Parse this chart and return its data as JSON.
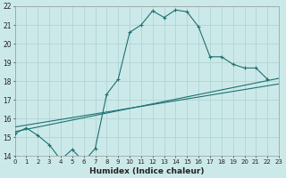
{
  "xlabel": "Humidex (Indice chaleur)",
  "x_min": 0,
  "x_max": 23,
  "y_min": 14,
  "y_max": 22,
  "background_color": "#cce9e9",
  "grid_color": "#b0d4d4",
  "line_color": "#1e7070",
  "main_line_x": [
    0,
    1,
    2,
    3,
    4,
    5,
    6,
    7,
    8,
    9,
    10,
    11,
    12,
    13,
    14,
    15,
    16,
    17,
    18,
    19,
    20,
    21,
    22
  ],
  "main_line_y": [
    15.2,
    15.5,
    15.1,
    14.6,
    13.8,
    14.35,
    13.7,
    14.4,
    17.3,
    18.1,
    20.6,
    21.0,
    21.75,
    21.4,
    21.8,
    21.7,
    20.9,
    19.3,
    19.3,
    18.9,
    18.7,
    18.7,
    18.1
  ],
  "line2_x": [
    0,
    23
  ],
  "line2_y": [
    15.3,
    18.15
  ],
  "line3_x": [
    0,
    23
  ],
  "line3_y": [
    15.55,
    17.85
  ],
  "yticks": [
    14,
    15,
    16,
    17,
    18,
    19,
    20,
    21,
    22
  ],
  "xticks": [
    0,
    1,
    2,
    3,
    4,
    5,
    6,
    7,
    8,
    9,
    10,
    11,
    12,
    13,
    14,
    15,
    16,
    17,
    18,
    19,
    20,
    21,
    22,
    23
  ]
}
